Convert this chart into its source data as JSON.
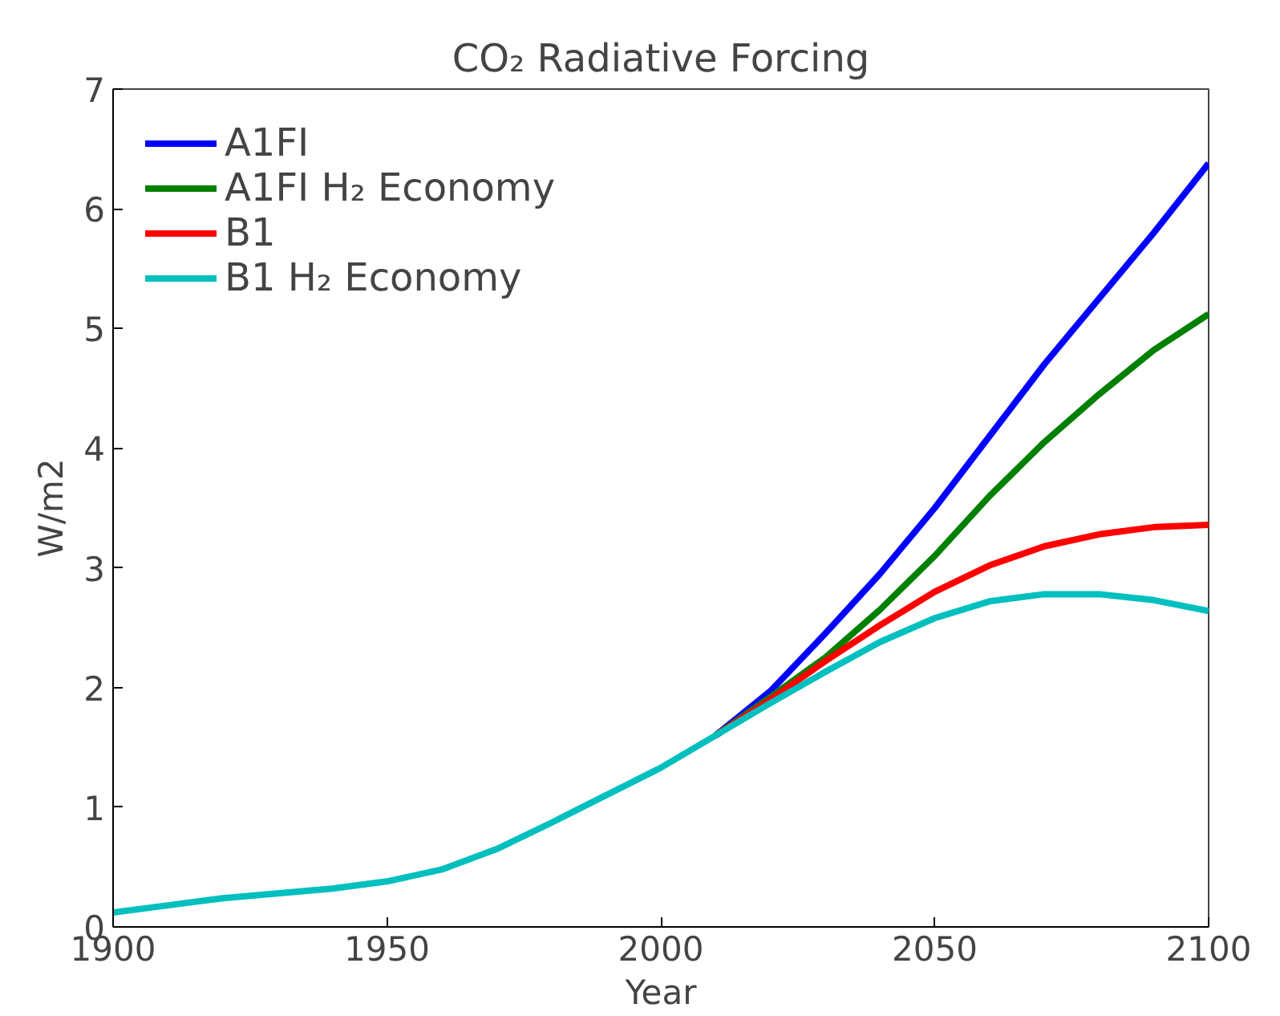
{
  "chart_data": {
    "type": "line",
    "title": "CO₂ Radiative Forcing",
    "xlabel": "Year",
    "ylabel": "W/m2",
    "x": [
      1900,
      1910,
      1920,
      1930,
      1940,
      1950,
      1960,
      1970,
      1980,
      1990,
      2000,
      2010,
      2020,
      2030,
      2040,
      2050,
      2060,
      2070,
      2080,
      2090,
      2100
    ],
    "series": [
      {
        "name": "A1FI",
        "color": "#0000ff",
        "values": [
          null,
          null,
          null,
          null,
          null,
          null,
          null,
          null,
          null,
          null,
          null,
          1.6,
          1.97,
          2.45,
          2.95,
          3.5,
          4.1,
          4.7,
          5.25,
          5.8,
          6.38
        ]
      },
      {
        "name": "A1FI H₂ Economy",
        "color": "#008000",
        "values": [
          null,
          null,
          null,
          null,
          null,
          null,
          null,
          null,
          null,
          null,
          null,
          1.6,
          1.92,
          2.25,
          2.65,
          3.1,
          3.6,
          4.05,
          4.45,
          4.82,
          5.12
        ]
      },
      {
        "name": "B1",
        "color": "#ff0000",
        "values": [
          null,
          null,
          null,
          null,
          null,
          null,
          null,
          null,
          null,
          null,
          null,
          1.6,
          1.9,
          2.22,
          2.52,
          2.8,
          3.02,
          3.18,
          3.28,
          3.34,
          3.36
        ]
      },
      {
        "name": "B1 H₂ Economy",
        "color": "#00bfbf",
        "values": [
          0.12,
          0.18,
          0.24,
          0.28,
          0.32,
          0.38,
          0.48,
          0.65,
          0.87,
          1.1,
          1.33,
          1.6,
          1.87,
          2.13,
          2.38,
          2.58,
          2.72,
          2.78,
          2.78,
          2.73,
          2.64
        ]
      }
    ],
    "xlim": [
      1900,
      2100
    ],
    "xticks": [
      1900,
      1950,
      2000,
      2050,
      2100
    ],
    "ylim": [
      0,
      7
    ],
    "yticks": [
      0,
      1,
      2,
      3,
      4,
      5,
      6,
      7
    ],
    "grid": false,
    "legend": "top left",
    "marker": "none",
    "line_style": "solid"
  }
}
